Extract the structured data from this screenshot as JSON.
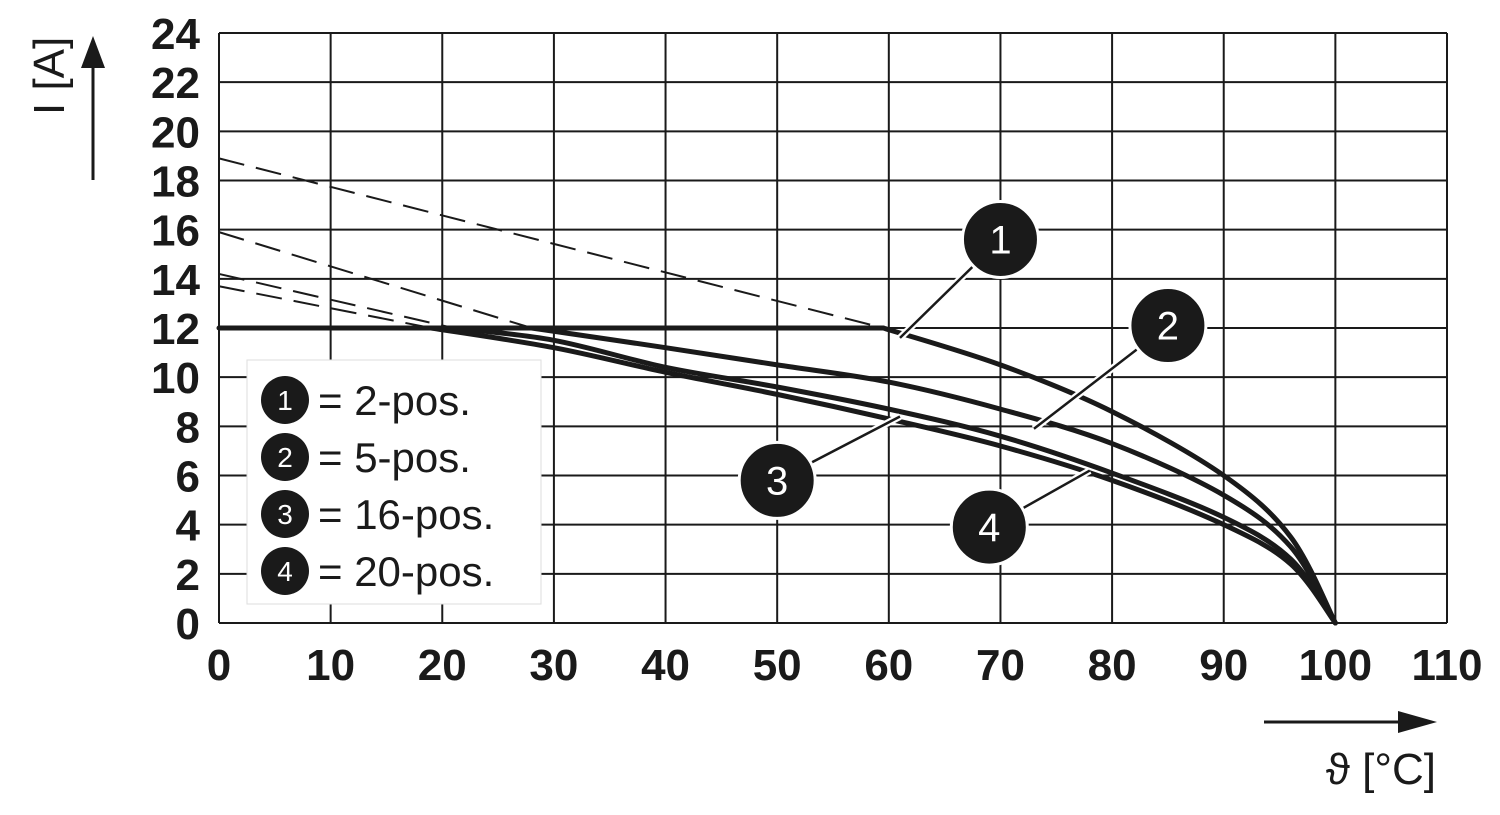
{
  "chart_data": {
    "type": "line",
    "xlabel": "ϑ [°C]",
    "ylabel": "I [A]",
    "xlim": [
      0,
      110
    ],
    "ylim": [
      0,
      24
    ],
    "x_ticks": [
      "0",
      "10",
      "20",
      "30",
      "40",
      "50",
      "60",
      "70",
      "80",
      "90",
      "100",
      "110"
    ],
    "y_ticks": [
      "0",
      "2",
      "4",
      "6",
      "8",
      "10",
      "12",
      "14",
      "16",
      "18",
      "20",
      "22",
      "24"
    ],
    "grid": true,
    "cap_current": 12,
    "series": [
      {
        "id": "1",
        "name": "2-pos.",
        "derating": {
          "t": [
            0,
            59.5,
            70,
            80,
            90,
            96,
            100
          ],
          "i": [
            18.9,
            12,
            10.5,
            8.6,
            6.0,
            3.5,
            0
          ]
        }
      },
      {
        "id": "2",
        "name": "5-pos.",
        "derating": {
          "t": [
            0,
            28,
            40,
            50,
            60,
            70,
            80,
            90,
            96,
            100
          ],
          "i": [
            15.9,
            12,
            11.2,
            10.5,
            9.8,
            8.7,
            7.3,
            5.2,
            3.1,
            0
          ]
        }
      },
      {
        "id": "3",
        "name": "16-pos.",
        "derating": {
          "t": [
            0,
            21,
            30,
            40,
            50,
            60,
            70,
            80,
            90,
            96,
            100
          ],
          "i": [
            14.2,
            12,
            11.5,
            10.4,
            9.6,
            8.7,
            7.6,
            6.1,
            4.3,
            2.6,
            0
          ]
        }
      },
      {
        "id": "4",
        "name": "20-pos.",
        "derating": {
          "t": [
            0,
            19,
            30,
            40,
            50,
            60,
            70,
            80,
            90,
            96,
            100
          ],
          "i": [
            13.7,
            12,
            11.2,
            10.2,
            9.3,
            8.3,
            7.2,
            5.8,
            4.0,
            2.4,
            0
          ]
        }
      }
    ],
    "legend": {
      "position": "bottom-left",
      "items": [
        {
          "badge": "1",
          "text": "= 2-pos."
        },
        {
          "badge": "2",
          "text": "= 5-pos."
        },
        {
          "badge": "3",
          "text": "= 16-pos."
        },
        {
          "badge": "4",
          "text": "= 20-pos."
        }
      ]
    },
    "callouts": [
      {
        "label": "1",
        "at": {
          "t": 61,
          "i": 11.6
        },
        "badge_at": {
          "t": 70,
          "i": 15.6
        }
      },
      {
        "label": "2",
        "at": {
          "t": 73,
          "i": 7.9
        },
        "badge_at": {
          "t": 85,
          "i": 12.1
        }
      },
      {
        "label": "3",
        "at": {
          "t": 61,
          "i": 8.4
        },
        "badge_at": {
          "t": 50,
          "i": 5.8
        }
      },
      {
        "label": "4",
        "at": {
          "t": 78,
          "i": 6.2
        },
        "badge_at": {
          "t": 69,
          "i": 3.9
        }
      }
    ]
  }
}
